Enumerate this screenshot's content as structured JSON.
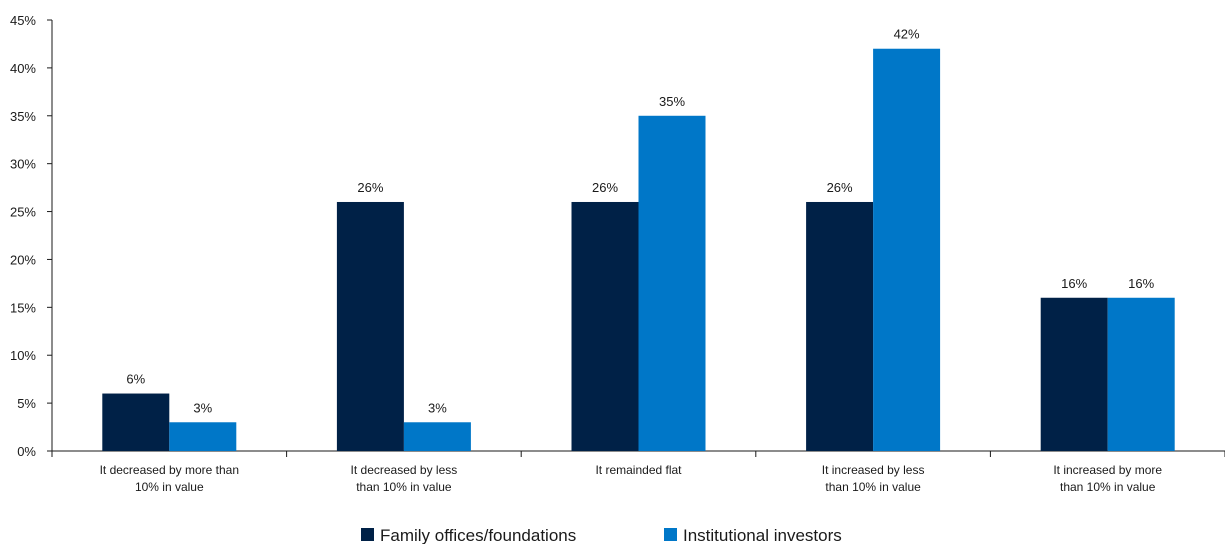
{
  "chart_data": {
    "type": "bar",
    "categories": [
      [
        "It decreased by more than",
        "10% in value"
      ],
      [
        "It decreased by less",
        "than 10% in value"
      ],
      [
        "It remainded flat"
      ],
      [
        "It increased by less",
        "than 10% in value"
      ],
      [
        "It increased by more",
        "than 10% in value"
      ]
    ],
    "series": [
      {
        "name": "Family offices/foundations",
        "color": "#002147",
        "values": [
          6,
          26,
          26,
          26,
          16
        ],
        "labels": [
          "6%",
          "26%",
          "26%",
          "26%",
          "16%"
        ]
      },
      {
        "name": "Institutional investors",
        "color": "#0077c8",
        "values": [
          3,
          3,
          35,
          42,
          16
        ],
        "labels": [
          "3%",
          "3%",
          "35%",
          "42%",
          "16%"
        ]
      }
    ],
    "ylim": [
      0,
      45
    ],
    "yticks": [
      0,
      5,
      10,
      15,
      20,
      25,
      30,
      35,
      40,
      45
    ],
    "ytick_labels": [
      "0%",
      "5%",
      "10%",
      "15%",
      "20%",
      "25%",
      "30%",
      "35%",
      "40%",
      "45%"
    ],
    "legend_position": "bottom-center",
    "grid": false
  }
}
